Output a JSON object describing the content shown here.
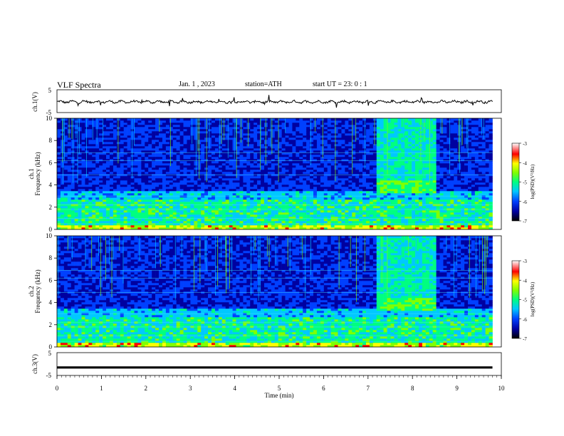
{
  "header": {
    "title": "VLF Spectra",
    "date": "Jan. 1 , 2023",
    "station": "station=ATH",
    "start": "start UT = 23: 0 : 1"
  },
  "chart_data": [
    {
      "type": "line",
      "panel": "ch1-waveform",
      "ylabel": "ch.1(V)",
      "yticks": [
        "5",
        "-5"
      ],
      "ylim": [
        -5,
        5
      ],
      "color": "#000000"
    },
    {
      "type": "heatmap",
      "panel": "ch1-spectrogram",
      "ylabel_channel": "ch.1",
      "ylabel": "Frequency (kHz)",
      "ylim": [
        0,
        10
      ],
      "yticks": [
        "0",
        "2",
        "4",
        "6",
        "8",
        "10"
      ],
      "colorbar": {
        "label": "log(PSD)(V²/Hz)",
        "range": [
          -7,
          -3
        ],
        "ticks": [
          "-3",
          "-4",
          "-5",
          "-6",
          "-7"
        ]
      },
      "features": {
        "emission_band_kHz": [
          3.5,
          4.5
        ],
        "emission_time_min": [
          7.2,
          8.5
        ]
      }
    },
    {
      "type": "heatmap",
      "panel": "ch2-spectrogram",
      "ylabel_channel": "ch.2",
      "ylabel": "Frequency (kHz)",
      "ylim": [
        0,
        10
      ],
      "yticks": [
        "0",
        "2",
        "4",
        "6",
        "8",
        "10"
      ],
      "colorbar": {
        "label": "log(PSD)(V²/Hz)",
        "range": [
          -7,
          -3
        ],
        "ticks": [
          "-3",
          "-4",
          "-5",
          "-6",
          "-7"
        ]
      },
      "features": {
        "emission_band_kHz": [
          3.5,
          4.5
        ],
        "emission_time_min": [
          7.2,
          8.5
        ]
      }
    },
    {
      "type": "line",
      "panel": "ch3-waveform",
      "ylabel": "ch.3(V)",
      "yticks": [
        "5",
        "-5"
      ],
      "ylim": [
        -5,
        5
      ],
      "level_V": -1.5,
      "color": "#000000"
    }
  ],
  "xaxis": {
    "label": "Time (min)",
    "ticks": [
      "0",
      "1",
      "2",
      "3",
      "4",
      "5",
      "6",
      "7",
      "8",
      "9",
      "10"
    ],
    "range": [
      0,
      10
    ]
  },
  "colors": {
    "ink": "#000000",
    "background": "#ffffff",
    "colormap": [
      "#000000",
      "#0000a0",
      "#0040ff",
      "#00c8ff",
      "#00ff80",
      "#80ff00",
      "#ffff00",
      "#ff0000",
      "#ffffff"
    ]
  }
}
